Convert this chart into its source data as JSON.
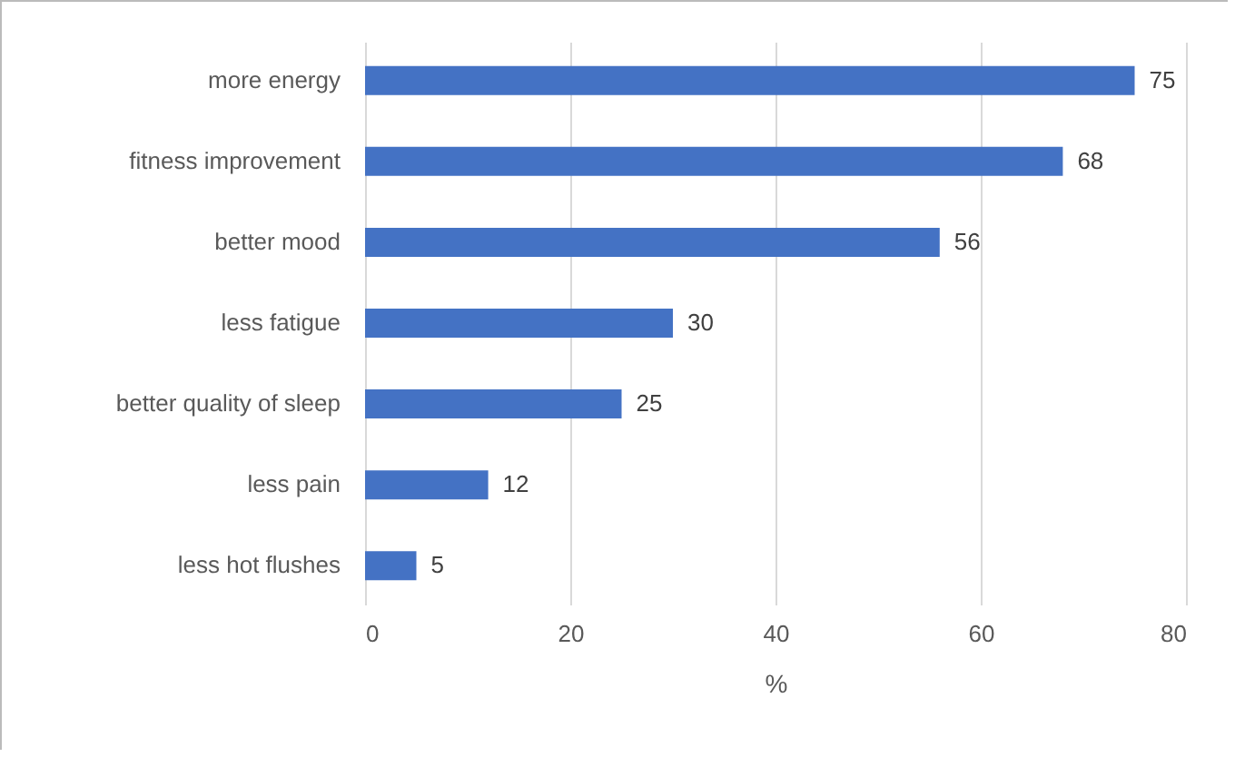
{
  "chart_data": {
    "type": "bar",
    "orientation": "horizontal",
    "categories": [
      "more energy",
      "fitness improvement",
      "better mood",
      "less fatigue",
      "better quality of sleep",
      "less pain",
      "less hot flushes"
    ],
    "values": [
      75,
      68,
      56,
      30,
      25,
      12,
      5
    ],
    "color": "#4472c4",
    "xlim": [
      0,
      80
    ],
    "xticks": [
      0,
      20,
      40,
      60,
      80
    ],
    "xlabel": "%",
    "grid": "x",
    "data_labels": true
  }
}
